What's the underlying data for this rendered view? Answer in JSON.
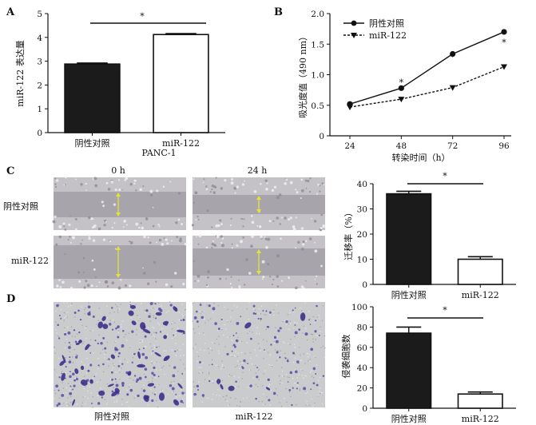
{
  "panels": {
    "a": "A",
    "b": "B",
    "c": "C",
    "d": "D"
  },
  "colors": {
    "control_bar": "#1b1b1b",
    "mir_bar": "#ffffff",
    "scratch_bg": "#9a9aa2",
    "scratch_gap": "#a7a4ab",
    "scratch_arrow": "#e3e23a",
    "stain": "#5a4aa6",
    "membrane": "#c9cbcd"
  },
  "panel_c_images": {
    "time_labels": [
      "0 h",
      "24 h"
    ],
    "row_labels": [
      "阴性对照",
      "miR-122"
    ]
  },
  "panel_d_images": {
    "col_labels": [
      "阴性对照",
      "miR-122"
    ]
  },
  "chart_data": [
    {
      "panel": "A",
      "type": "bar",
      "categories": [
        "阴性对照",
        "miR-122"
      ],
      "values": [
        2.88,
        4.12
      ],
      "errors": [
        0.04,
        0.04
      ],
      "xlabel": "PANC-1",
      "ylabel": "miR-122 表达量",
      "ylim": [
        0,
        5
      ],
      "yticks": [
        0,
        1,
        2,
        3,
        4,
        5
      ],
      "significance": "*"
    },
    {
      "panel": "B",
      "type": "line",
      "x": [
        24,
        48,
        72,
        96
      ],
      "series": [
        {
          "name": "阴性对照",
          "values": [
            0.52,
            0.78,
            1.34,
            1.7
          ],
          "marker": "circle",
          "style": "solid"
        },
        {
          "name": "miR-122",
          "values": [
            0.47,
            0.6,
            0.79,
            1.13
          ],
          "marker": "triangle-down",
          "style": "dashed"
        }
      ],
      "xlabel": "转染时间（h）",
      "ylabel": "吸光度值（490 nm）",
      "ylim": [
        0,
        2.0
      ],
      "yticks": [
        "0",
        "0.5",
        "1.0",
        "1.5",
        "2.0"
      ],
      "significance": [
        "*",
        "*",
        "*"
      ],
      "legend": "top-left"
    },
    {
      "panel": "C",
      "type": "bar",
      "categories": [
        "阴性对照",
        "miR-122"
      ],
      "values": [
        36,
        10
      ],
      "errors": [
        1.0,
        1.0
      ],
      "ylabel": "迁移率（%）",
      "ylim": [
        0,
        40
      ],
      "yticks": [
        0,
        10,
        20,
        30,
        40
      ],
      "significance": "*"
    },
    {
      "panel": "D",
      "type": "bar",
      "categories": [
        "阴性对照",
        "miR-122"
      ],
      "values": [
        74,
        14
      ],
      "errors": [
        6,
        2
      ],
      "ylabel": "侵袭细胞数",
      "ylim": [
        0,
        100
      ],
      "yticks": [
        0,
        20,
        40,
        60,
        80,
        100
      ],
      "significance": "*"
    }
  ]
}
